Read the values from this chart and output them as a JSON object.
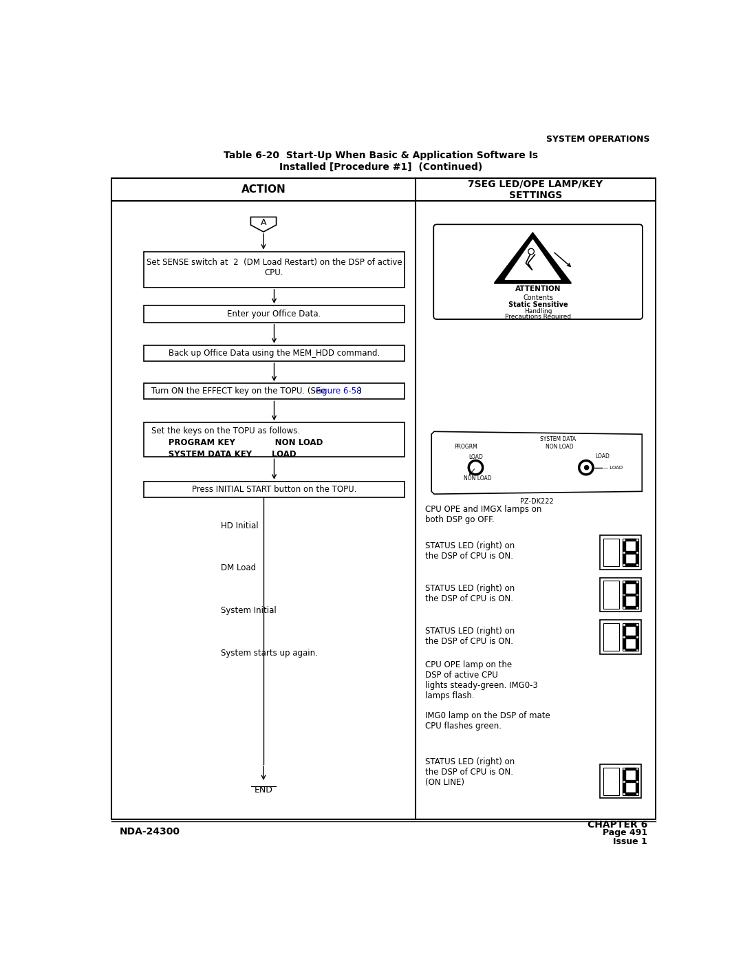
{
  "title_top_right": "SYSTEM OPERATIONS",
  "table_title_line1": "Table 6-20  Start-Up When Basic & Application Software Is",
  "table_title_line2": "Installed [Procedure #1]  (Continued)",
  "col1_header": "ACTION",
  "col2_header": "7SEG LED/OPE LAMP/KEY\nSETTINGS",
  "footer_left": "NDA-24300",
  "footer_right_line1": "CHAPTER 6",
  "footer_right_line2": "Page 491",
  "footer_right_line3": "Issue 1",
  "box1_text": "Set SENSE switch at  2  (DM Load Restart) on the DSP of active\nCPU.",
  "box2_text": "Enter your Office Data.",
  "box3_text": "Back up Office Data using the MEM_HDD command.",
  "box5_text_line1": "Set the keys on the TOPU as follows.",
  "box5_text_line2": "      PROGRAM KEY              NON LOAD",
  "box5_text_line3": "      SYSTEM DATA KEY       LOAD",
  "box6_text": "Press INITIAL START button on the TOPU.",
  "label_a": "A",
  "label_end": "END",
  "right_label1": "HD Initial",
  "right_label2": "DM Load",
  "right_label3": "System Initial",
  "right_label4": "System starts up again.",
  "right_text1": "CPU OPE and IMGX lamps on\nboth DSP go OFF.",
  "right_text2": "STATUS LED (right) on\nthe DSP of CPU is ON.",
  "right_text3": "STATUS LED (right) on\nthe DSP of CPU is ON.",
  "right_text4": "STATUS LED (right) on\nthe DSP of CPU is ON.",
  "right_text5": "CPU OPE lamp on the\nDSP of active CPU\nlights steady-green. IMG0-3\nlamps flash.",
  "right_text6": "IMG0 lamp on the DSP of mate\nCPU flashes green.",
  "right_text7": "STATUS LED (right) on\nthe DSP of CPU is ON.\n(ON LINE)",
  "pz_label": "PZ-DK222",
  "bg_color": "#ffffff",
  "text_color": "#000000",
  "link_color": "#0000cc",
  "border_color": "#000000"
}
